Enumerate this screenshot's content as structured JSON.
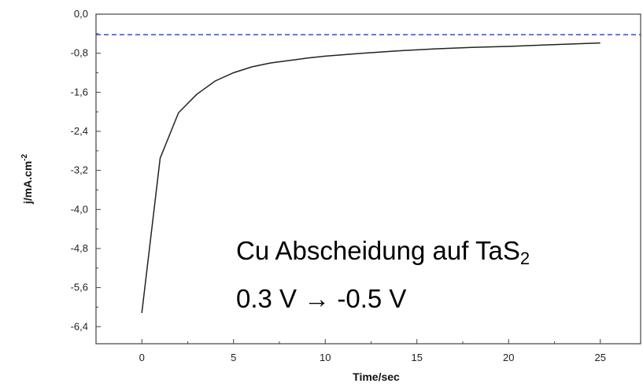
{
  "chart_data": {
    "type": "line",
    "xlabel": "Time/sec",
    "ylabel": "j/mA.cm",
    "ylabel_superscript": "-2",
    "xlim": [
      -2.5,
      27.2
    ],
    "ylim": [
      -6.75,
      0.0
    ],
    "x_ticks": [
      0,
      5,
      10,
      15,
      20,
      25
    ],
    "x_tick_labels": [
      "0",
      "5",
      "10",
      "15",
      "20",
      "25"
    ],
    "y_ticks": [
      0.0,
      -0.8,
      -1.6,
      -2.4,
      -3.2,
      -4.0,
      -4.8,
      -5.6,
      -6.4
    ],
    "y_tick_labels": [
      "0,0",
      "-0,8",
      "-1,6",
      "-2,4",
      "-3,2",
      "-4,0",
      "-4,8",
      "-5,6",
      "-6,4"
    ],
    "grid": false,
    "series": [
      {
        "color": "#222222",
        "x": [
          0,
          1,
          2,
          3,
          4,
          5,
          6,
          7,
          8,
          9,
          10,
          12,
          14,
          16,
          18,
          20,
          22,
          25
        ],
        "y": [
          -6.12,
          -2.95,
          -2.02,
          -1.64,
          -1.37,
          -1.2,
          -1.08,
          -1.0,
          -0.95,
          -0.9,
          -0.86,
          -0.8,
          -0.75,
          -0.71,
          -0.68,
          -0.66,
          -0.63,
          -0.59
        ]
      }
    ],
    "reference_line": {
      "y": -0.42,
      "color": "#3b5fd6",
      "style": "dashed"
    },
    "annotations": {
      "line1_main": "Cu Abscheidung auf TaS",
      "line1_sub": "2",
      "line2": "0.3 V →  -0.5 V"
    }
  }
}
